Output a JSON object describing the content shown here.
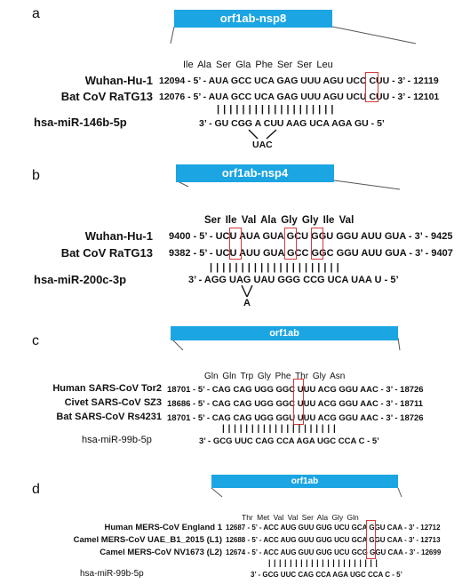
{
  "panels": [
    {
      "letter": "a",
      "gene": "orf1ab-nsp8",
      "amino_acids": "Ile    Ala    Ser   Gla   Phe   Ser   Ser   Leu",
      "rows": [
        {
          "label": "Wuhan-Hu-1",
          "seq": "12094 - 5’ - AUA  GCC  UCA  GAG  UUU  AGU  UCC  CUU - 3’ - 12119"
        },
        {
          "label": "Bat CoV RaTG13",
          "seq": "12076 - 5’ - AUA  GCC  UCA  GAG  UUU  AGU  UCU  CUU - 3’ - 12101"
        }
      ],
      "pairing": "|  |     | | |         | | |   | | |   | | |   | | |   |  |",
      "mirna_label": "hsa-miR-146b-5p",
      "mirna_seq": "3’ - GU  CGG  A       CUU  AAG  UCA  AGA  GU - 5’",
      "bulge": "UAC"
    },
    {
      "letter": "b",
      "gene": "orf1ab-nsp4",
      "amino_acids": "Ser    Ile     Val    Ala    Gly    Gly    Ile     Val",
      "rows": [
        {
          "label": "Wuhan-Hu-1",
          "seq": "9400 - 5’ - UCU  AUA  GUA  GCU  GGU  GGU  AUU  GUA - 3’ - 9425"
        },
        {
          "label": "Bat CoV RaTG13",
          "seq": "9382 - 5’ - UCU  AUU  GUA  GCC  GGC  GGU  AUU  GUA - 3’ - 9407"
        }
      ],
      "pairing": "| | |   | | |   | |     | | |   | | |   | | |   | | |   |",
      "mirna_label": "hsa-miR-200c-3p",
      "mirna_seq": "3’ - AGG  UAG  UAU  GGG  CCG  UCA  UAA  U - 5’",
      "bulge": "A"
    },
    {
      "letter": "c",
      "gene": "orf1ab",
      "amino_acids": "Gln     Gln    Trp    Gly    Phe    Thr    Gly    Asn",
      "rows": [
        {
          "label": "Human SARS-CoV Tor2",
          "seq": "18701 - 5’ - CAG  CAG  UGG  GGC  UUU  ACG  GGU  AAC - 3’ - 18726"
        },
        {
          "label": "Civet SARS-CoV SZ3",
          "seq": "18686 - 5’ - CAG  CAG  UGG  GGC  UUU  ACG  GGU  AAC - 3’ - 18711"
        },
        {
          "label": "Bat SARS-CoV Rs4231",
          "seq": "18701 - 5’ - CAG  CAG  UGG  GGU  UUU  ACG  GGU  AAC - 3’ - 18726"
        }
      ],
      "pairing": "| | |   | | |   | | |   | | |   | |     | | |   | | |",
      "mirna_label": "hsa-miR-99b-5p",
      "mirna_seq": "3’ - GCG  UUC  CAG  CCA  AGA  UGC  CCA   C   - 5’"
    },
    {
      "letter": "d",
      "gene": "orf1ab",
      "amino_acids": "Thr    Met     Val    Val     Ser    Ala    Gly    Gln",
      "rows": [
        {
          "label": "Human MERS-CoV England 1",
          "seq": "12687 - 5’ - ACC  AUG  GUU  GUG  UCU  GCA  GGU  CAA - 3’ - 12712"
        },
        {
          "label": "Camel MERS-CoV UAE_B1_2015 (L1)",
          "seq": "12688 - 5’ - ACC  AUG  GUU  GUG  UCU  GCA  GGU  CAA - 3’ - 12713"
        },
        {
          "label": "Camel MERS-CoV NV1673 (L2)",
          "seq": "12674 - 5’ - ACC  AUG  GUU  GUG  UCU  GCG  GGU  CAA - 3’ - 12699"
        }
      ],
      "pairing": "| | |   | | |   | | |   | | |   | | |   | |     | | |   |",
      "mirna_label": "hsa-miR-99b-5p",
      "mirna_seq": "3’ - GCG  UUC  CAG  CCA  AGA  UGC  CCA   C   - 5’"
    }
  ],
  "colors": {
    "banner": "#1ba5e2",
    "highlight_box": "#d63a3a"
  }
}
